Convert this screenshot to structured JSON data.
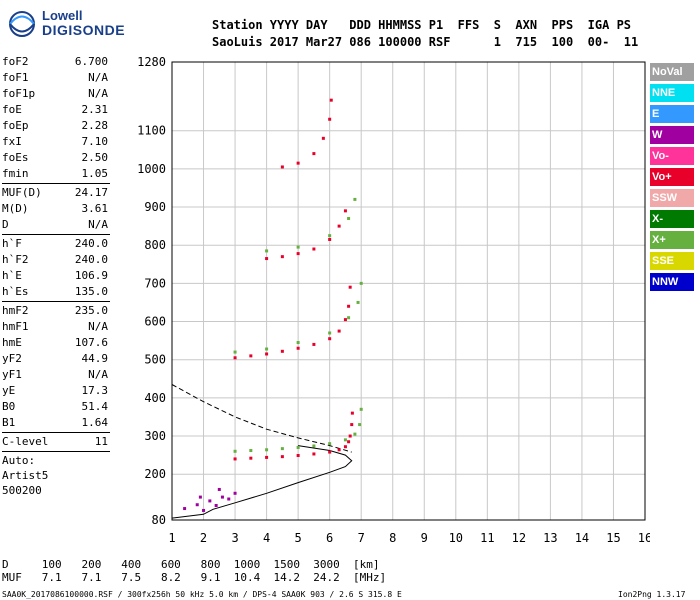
{
  "logo": {
    "line1": "Lowell",
    "line2": "DIGISONDE"
  },
  "header": {
    "line1": "Station YYYY DAY   DDD HHMMSS P1  FFS  S  AXN  PPS  IGA PS",
    "line2": "SaoLuis 2017 Mar27 086 100000 RSF      1  715  100  00-  11"
  },
  "params": {
    "group1": [
      {
        "label": "foF2",
        "value": "6.700"
      },
      {
        "label": "foF1",
        "value": "N/A"
      },
      {
        "label": "foF1p",
        "value": "N/A"
      },
      {
        "label": "foE",
        "value": "2.31"
      },
      {
        "label": "foEp",
        "value": "2.28"
      },
      {
        "label": "fxI",
        "value": "7.10"
      },
      {
        "label": "foEs",
        "value": "2.50"
      },
      {
        "label": "fmin",
        "value": "1.05"
      }
    ],
    "group2": [
      {
        "label": "MUF(D)",
        "value": "24.17"
      },
      {
        "label": "M(D)",
        "value": "3.61"
      },
      {
        "label": "D",
        "value": "N/A"
      }
    ],
    "group3": [
      {
        "label": "h`F",
        "value": "240.0"
      },
      {
        "label": "h`F2",
        "value": "240.0"
      },
      {
        "label": "h`E",
        "value": "106.9"
      },
      {
        "label": "h`Es",
        "value": "135.0"
      }
    ],
    "group4": [
      {
        "label": "hmF2",
        "value": "235.0"
      },
      {
        "label": "hmF1",
        "value": "N/A"
      },
      {
        "label": "hmE",
        "value": "107.6"
      },
      {
        "label": "yF2",
        "value": "44.9"
      },
      {
        "label": "yF1",
        "value": "N/A"
      },
      {
        "label": "yE",
        "value": "17.3"
      },
      {
        "label": "B0",
        "value": "51.4"
      },
      {
        "label": "B1",
        "value": "1.64"
      }
    ],
    "clevel": {
      "label": "C-level",
      "value": "11"
    },
    "auto": [
      "Auto:",
      "Artist5",
      "500200"
    ]
  },
  "legend": [
    {
      "label": "NoVal",
      "color": "#a0a0a0"
    },
    {
      "label": "NNE",
      "color": "#00e0f0"
    },
    {
      "label": "E",
      "color": "#3399ff"
    },
    {
      "label": "W",
      "color": "#a000a0"
    },
    {
      "label": "Vo-",
      "color": "#ff3399"
    },
    {
      "label": "Vo+",
      "color": "#e8002a"
    },
    {
      "label": "SSW",
      "color": "#f0a8a8"
    },
    {
      "label": "X-",
      "color": "#007a00"
    },
    {
      "label": "X+",
      "color": "#66b040"
    },
    {
      "label": "SSE",
      "color": "#d8d800"
    },
    {
      "label": "NNW",
      "color": "#0000cc"
    }
  ],
  "footer": {
    "d_row": "D     100   200   400   600   800  1000  1500  3000  [km]",
    "muf_row": "MUF   7.1   7.1   7.5   8.2   9.1  10.4  14.2  24.2  [MHz]",
    "info": "SAA0K_2017086100000.RSF / 300fx256h 50 kHz 5.0 km / DPS-4 SAA0K 903 / 2.6 S 315.8 E",
    "version": "Ion2Png 1.3.17"
  },
  "chart_data": {
    "type": "scatter",
    "xlim": [
      1,
      16
    ],
    "ylim": [
      80,
      1280
    ],
    "x_ticks": [
      1,
      2,
      3,
      4,
      5,
      6,
      7,
      8,
      9,
      10,
      11,
      12,
      13,
      14,
      15,
      16
    ],
    "y_ticks": [
      80,
      200,
      300,
      400,
      500,
      600,
      700,
      800,
      900,
      1000,
      1100,
      1280
    ],
    "grid": true,
    "series": [
      {
        "color": "#e8002a",
        "points": [
          [
            3.0,
            240
          ],
          [
            3.5,
            242
          ],
          [
            4.0,
            244
          ],
          [
            4.5,
            246
          ],
          [
            5.0,
            249
          ],
          [
            5.5,
            253
          ],
          [
            6.0,
            258
          ],
          [
            6.3,
            264
          ],
          [
            6.5,
            272
          ],
          [
            6.6,
            285
          ],
          [
            6.65,
            300
          ],
          [
            6.7,
            330
          ],
          [
            6.72,
            360
          ],
          [
            3.0,
            505
          ],
          [
            3.5,
            510
          ],
          [
            4.0,
            515
          ],
          [
            4.5,
            522
          ],
          [
            5.0,
            530
          ],
          [
            5.5,
            540
          ],
          [
            6.0,
            555
          ],
          [
            6.3,
            575
          ],
          [
            6.5,
            605
          ],
          [
            6.6,
            640
          ],
          [
            6.65,
            690
          ],
          [
            4.0,
            765
          ],
          [
            4.5,
            770
          ],
          [
            5.0,
            778
          ],
          [
            5.5,
            790
          ],
          [
            6.0,
            815
          ],
          [
            6.3,
            850
          ],
          [
            6.5,
            890
          ],
          [
            4.5,
            1005
          ],
          [
            5.0,
            1015
          ],
          [
            5.5,
            1040
          ],
          [
            5.8,
            1080
          ],
          [
            6.0,
            1130
          ],
          [
            6.05,
            1180
          ]
        ]
      },
      {
        "color": "#66b040",
        "points": [
          [
            3.0,
            260
          ],
          [
            3.5,
            262
          ],
          [
            4.0,
            264
          ],
          [
            4.5,
            267
          ],
          [
            5.0,
            270
          ],
          [
            5.5,
            274
          ],
          [
            6.0,
            280
          ],
          [
            6.5,
            290
          ],
          [
            6.8,
            305
          ],
          [
            6.95,
            330
          ],
          [
            7.0,
            370
          ],
          [
            3.0,
            520
          ],
          [
            4.0,
            528
          ],
          [
            5.0,
            545
          ],
          [
            6.0,
            570
          ],
          [
            6.6,
            610
          ],
          [
            6.9,
            650
          ],
          [
            7.0,
            700
          ],
          [
            4.0,
            785
          ],
          [
            5.0,
            795
          ],
          [
            6.0,
            825
          ],
          [
            6.6,
            870
          ],
          [
            6.8,
            920
          ]
        ]
      },
      {
        "color": "#a000a0",
        "points": [
          [
            1.4,
            110
          ],
          [
            1.8,
            120
          ],
          [
            2.2,
            130
          ],
          [
            2.6,
            140
          ],
          [
            3.0,
            150
          ],
          [
            2.0,
            105
          ],
          [
            2.4,
            118
          ],
          [
            2.8,
            135
          ],
          [
            1.9,
            140
          ],
          [
            2.5,
            160
          ]
        ]
      }
    ],
    "profile_solid": [
      [
        1.0,
        85
      ],
      [
        2.0,
        95
      ],
      [
        2.3,
        108
      ],
      [
        3.0,
        125
      ],
      [
        4.0,
        150
      ],
      [
        5.0,
        178
      ],
      [
        6.0,
        205
      ],
      [
        6.5,
        220
      ],
      [
        6.7,
        235
      ],
      [
        6.5,
        250
      ],
      [
        6.0,
        262
      ],
      [
        5.0,
        275
      ]
    ],
    "profile_dashed": [
      [
        1.0,
        435
      ],
      [
        2.0,
        390
      ],
      [
        3.0,
        350
      ],
      [
        4.0,
        318
      ],
      [
        5.0,
        295
      ],
      [
        6.0,
        275
      ],
      [
        6.7,
        258
      ]
    ]
  }
}
